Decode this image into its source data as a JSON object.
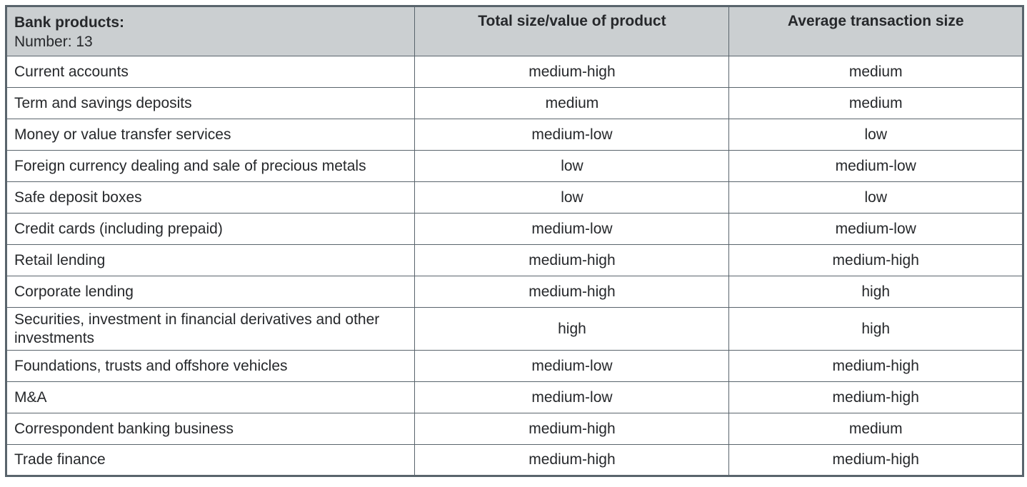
{
  "table": {
    "header": {
      "products_title": "Bank products:",
      "products_subtitle": "Number: 13",
      "total_size_label": "Total size/value of product",
      "avg_transaction_label": "Average transaction size"
    },
    "rows": [
      {
        "product": "Current accounts",
        "total_size": "medium-high",
        "avg_transaction": "medium"
      },
      {
        "product": "Term and savings deposits",
        "total_size": "medium",
        "avg_transaction": "medium"
      },
      {
        "product": "Money or value transfer services",
        "total_size": "medium-low",
        "avg_transaction": "low"
      },
      {
        "product": "Foreign currency dealing and sale of precious metals",
        "total_size": "low",
        "avg_transaction": "medium-low"
      },
      {
        "product": "Safe deposit boxes",
        "total_size": "low",
        "avg_transaction": "low"
      },
      {
        "product": "Credit cards (including prepaid)",
        "total_size": "medium-low",
        "avg_transaction": "medium-low"
      },
      {
        "product": "Retail lending",
        "total_size": "medium-high",
        "avg_transaction": "medium-high"
      },
      {
        "product": "Corporate lending",
        "total_size": "medium-high",
        "avg_transaction": "high"
      },
      {
        "product": "Securities, investment in financial derivatives and other investments",
        "total_size": "high",
        "avg_transaction": "high"
      },
      {
        "product": "Foundations, trusts and offshore vehicles",
        "total_size": "medium-low",
        "avg_transaction": "medium-high"
      },
      {
        "product": "M&A",
        "total_size": "medium-low",
        "avg_transaction": "medium-high"
      },
      {
        "product": "Correspondent banking business",
        "total_size": "medium-high",
        "avg_transaction": "medium"
      },
      {
        "product": "Trade finance",
        "total_size": "medium-high",
        "avg_transaction": "medium-high"
      }
    ]
  },
  "colors": {
    "header_bg": "#cbcfd1",
    "border": "#59646c",
    "text": "#26282b",
    "page_bg": "#ffffff"
  }
}
